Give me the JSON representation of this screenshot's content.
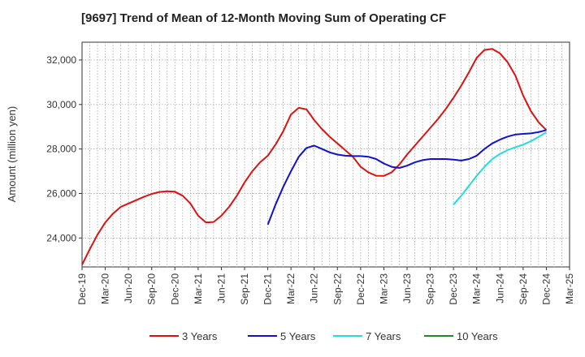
{
  "chart_data": {
    "type": "line",
    "title": "[9697]  Trend of Mean of 12-Month Moving Sum of Operating CF",
    "xlabel": "",
    "ylabel": "Amount (million yen)",
    "ylim": [
      22700,
      32800
    ],
    "yticks": [
      24000,
      26000,
      28000,
      30000,
      32000
    ],
    "ytick_labels": [
      "24,000",
      "26,000",
      "28,000",
      "30,000",
      "32,000"
    ],
    "xticks": [
      "Dec-19",
      "Mar-20",
      "Jun-20",
      "Sep-20",
      "Dec-20",
      "Mar-21",
      "Jun-21",
      "Sep-21",
      "Dec-21",
      "Mar-22",
      "Jun-22",
      "Sep-22",
      "Dec-22",
      "Mar-23",
      "Jun-23",
      "Sep-23",
      "Dec-23",
      "Mar-24",
      "Jun-24",
      "Sep-24",
      "Dec-24",
      "Mar-25"
    ],
    "grid": true,
    "legend_position": "bottom",
    "series": [
      {
        "name": "3 Years",
        "color": "#dd1111",
        "start_month_index": 0,
        "values": [
          22800,
          23500,
          24150,
          24700,
          25100,
          25400,
          25550,
          25700,
          25850,
          25980,
          26070,
          26100,
          26080,
          25900,
          25550,
          25000,
          24700,
          24720,
          25000,
          25400,
          25900,
          26500,
          27000,
          27400,
          27700,
          28200,
          28800,
          29550,
          29850,
          29780,
          29300,
          28900,
          28550,
          28250,
          27950,
          27650,
          27200,
          26950,
          26800,
          26790,
          26950,
          27300,
          27750,
          28150,
          28550,
          28950,
          29350,
          29800,
          30300,
          30850,
          31450,
          32100,
          32450,
          32500,
          32300,
          31900,
          31300,
          30400,
          29700,
          29200,
          28850
        ]
      },
      {
        "name": "5 Years",
        "color": "#1111cc",
        "start_month_index": 24,
        "values": [
          24600,
          25500,
          26300,
          27000,
          27650,
          28050,
          28150,
          28000,
          27850,
          27750,
          27700,
          27680,
          27680,
          27650,
          27550,
          27350,
          27200,
          27150,
          27250,
          27400,
          27500,
          27550,
          27550,
          27550,
          27520,
          27480,
          27550,
          27700,
          28000,
          28250,
          28420,
          28560,
          28650,
          28680,
          28700,
          28760,
          28850
        ]
      },
      {
        "name": "7 Years",
        "color": "#22dddd",
        "start_month_index": 48,
        "values": [
          25500,
          25900,
          26350,
          26800,
          27200,
          27550,
          27780,
          27950,
          28080,
          28200,
          28350,
          28550,
          28750
        ]
      },
      {
        "name": "10 Years",
        "color": "#228822",
        "start_month_index": 0,
        "values": []
      }
    ]
  }
}
